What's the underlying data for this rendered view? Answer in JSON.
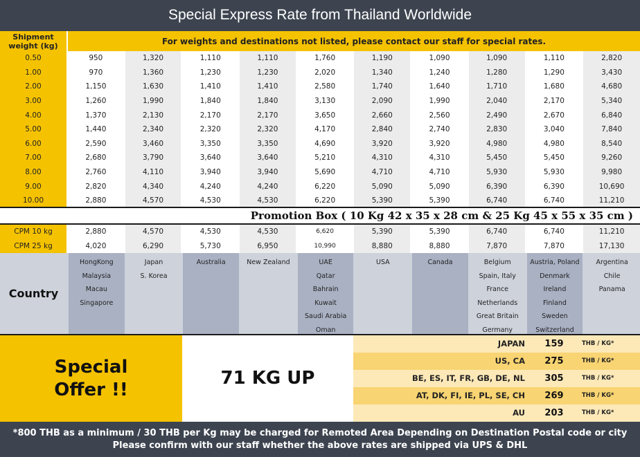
{
  "title": "Special Express Rate from Thailand  Worldwide",
  "table": {
    "weight_header": "Shipment weight (kg)",
    "note": "For weights and destinations not listed, please contact our staff for special rates.",
    "rows": [
      {
        "w": "0.50",
        "v": [
          "950",
          "1,320",
          "1,110",
          "1,110",
          "1,760",
          "1,190",
          "1,090",
          "1,090",
          "1,110",
          "2,820"
        ]
      },
      {
        "w": "1.00",
        "v": [
          "970",
          "1,360",
          "1,230",
          "1,230",
          "2,020",
          "1,340",
          "1,240",
          "1,280",
          "1,290",
          "3,430"
        ]
      },
      {
        "w": "2.00",
        "v": [
          "1,150",
          "1,630",
          "1,410",
          "1,410",
          "2,580",
          "1,740",
          "1,640",
          "1,710",
          "1,680",
          "4,680"
        ]
      },
      {
        "w": "3.00",
        "v": [
          "1,260",
          "1,990",
          "1,840",
          "1,840",
          "3,130",
          "2,090",
          "1,990",
          "2,040",
          "2,170",
          "5,340"
        ]
      },
      {
        "w": "4.00",
        "v": [
          "1,370",
          "2,130",
          "2,170",
          "2,170",
          "3,650",
          "2,660",
          "2,560",
          "2,490",
          "2,670",
          "6,840"
        ]
      },
      {
        "w": "5.00",
        "v": [
          "1,440",
          "2,340",
          "2,320",
          "2,320",
          "4,170",
          "2,840",
          "2,740",
          "2,830",
          "3,040",
          "7,840"
        ]
      },
      {
        "w": "6.00",
        "v": [
          "2,590",
          "3,460",
          "3,350",
          "3,350",
          "4,690",
          "3,920",
          "3,920",
          "4,980",
          "4,980",
          "8,540"
        ]
      },
      {
        "w": "7.00",
        "v": [
          "2,680",
          "3,790",
          "3,640",
          "3,640",
          "5,210",
          "4,310",
          "4,310",
          "5,450",
          "5,450",
          "9,260"
        ]
      },
      {
        "w": "8.00",
        "v": [
          "2,760",
          "4,110",
          "3,940",
          "3,940",
          "5,690",
          "4,710",
          "4,710",
          "5,930",
          "5,930",
          "9,980"
        ]
      },
      {
        "w": "9.00",
        "v": [
          "2,820",
          "4,340",
          "4,240",
          "4,240",
          "6,220",
          "5,090",
          "5,090",
          "6,390",
          "6,390",
          "10,690"
        ]
      },
      {
        "w": "10.00",
        "v": [
          "2,880",
          "4,570",
          "4,530",
          "4,530",
          "6,220",
          "5,390",
          "5,390",
          "6,740",
          "6,740",
          "11,210"
        ]
      }
    ]
  },
  "promotion": "Promotion Box ( 10 Kg 42 x 35 x 28 cm & 25 Kg 45 x 55 x 35 cm )",
  "cpm": [
    {
      "w": "CPM 10 kg",
      "v": [
        "2,880",
        "4,570",
        "4,530",
        "4,530",
        "6,620",
        "5,390",
        "5,390",
        "6,740",
        "6,740",
        "11,210"
      ]
    },
    {
      "w": "CPM 25 kg",
      "v": [
        "4,020",
        "6,290",
        "5,730",
        "6,950",
        "10,990",
        "8,880",
        "8,880",
        "7,870",
        "7,870",
        "17,130"
      ]
    }
  ],
  "country": {
    "label": "Country",
    "columns": [
      [
        "HongKong",
        "Malaysia",
        "Macau",
        "Singapore"
      ],
      [
        "Japan",
        "S. Korea"
      ],
      [
        "Australia"
      ],
      [
        "New Zealand"
      ],
      [
        "UAE",
        "Qatar",
        "Bahrain",
        "Kuwait",
        "Saudi Arabia",
        "Oman"
      ],
      [
        "USA"
      ],
      [
        "Canada"
      ],
      [
        "Belgium",
        "Spain, Italy",
        "France",
        "Netherlands",
        "Great Britain",
        "Germany"
      ],
      [
        "Austria, Poland",
        "Denmark",
        "Ireland",
        "Finland",
        "Sweden",
        "Switzerland"
      ],
      [
        "Argentina",
        "Chile",
        "Panama"
      ]
    ]
  },
  "offer": {
    "special_line1": "Special",
    "special_line2": "Offer !!",
    "kg_up": "71 KG UP",
    "rates": [
      {
        "dest": "JAPAN",
        "price": "159",
        "unit": "THB / KG*"
      },
      {
        "dest": "US, CA",
        "price": "275",
        "unit": "THB / KG*"
      },
      {
        "dest": "BE, ES, IT, FR, GB, DE, NL",
        "price": "305",
        "unit": "THB / KG*"
      },
      {
        "dest": "AT, DK, FI, IE, PL, SE, CH",
        "price": "269",
        "unit": "THB / KG*"
      },
      {
        "dest": "AU",
        "price": "203",
        "unit": "THB / KG*"
      }
    ]
  },
  "footer": {
    "line1": "*800 THB as a minimum / 30 THB per Kg may be charged for Remoted Area Depending on Destination Postal code or city",
    "line2": "Please confirm with our staff whether the above rates are shipped via UPS & DHL"
  }
}
